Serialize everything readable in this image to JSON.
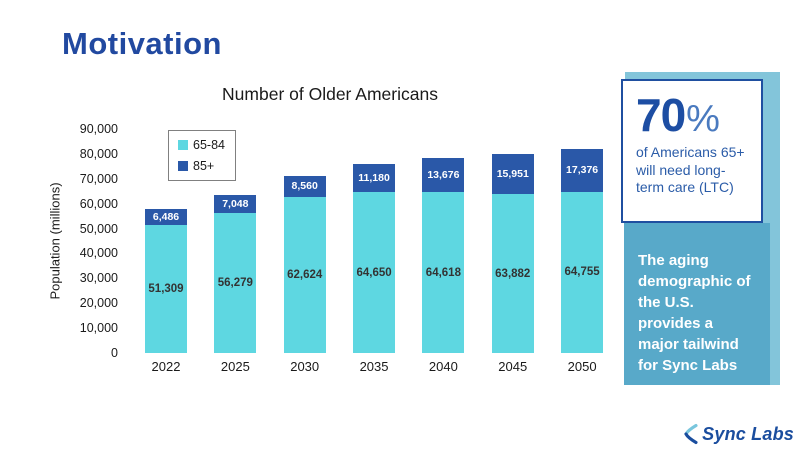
{
  "slide": {
    "title": "Motivation"
  },
  "chart_data": {
    "type": "bar",
    "stacked": true,
    "title": "Number of Older Americans",
    "xlabel": "",
    "ylabel": "Population (millions)",
    "categories": [
      "2022",
      "2025",
      "2030",
      "2035",
      "2040",
      "2045",
      "2050"
    ],
    "series": [
      {
        "name": "65-84",
        "color": "#5ed7e1",
        "values": [
          51309,
          56279,
          62624,
          64650,
          64618,
          63882,
          64755
        ]
      },
      {
        "name": "85+",
        "color": "#2a58a8",
        "values": [
          6486,
          7048,
          8560,
          11180,
          13676,
          15951,
          17376
        ]
      }
    ],
    "ylim": [
      0,
      90000
    ],
    "y_tick_step": 10000,
    "grid": false,
    "legend_position": "upper-left"
  },
  "sidebar": {
    "stat_value": "70",
    "stat_percent": "%",
    "stat_caption": "of Americans 65+ will need long-term care (LTC)",
    "callout": "The aging demographic of the U.S. provides a major tailwind for Sync Labs"
  },
  "footer": {
    "brand": "Sync Labs"
  },
  "colors": {
    "heading": "#2149a0",
    "panel_back": "#83c5da",
    "callout_bg": "#58a9c9",
    "card_border": "#1f4fa0",
    "stat_number": "#1d4ea3",
    "stat_percent": "#4a7abf",
    "stat_caption": "#2b5ca8",
    "logo_blue": "#1a4d9e",
    "logo_teal": "#79c6dd"
  }
}
